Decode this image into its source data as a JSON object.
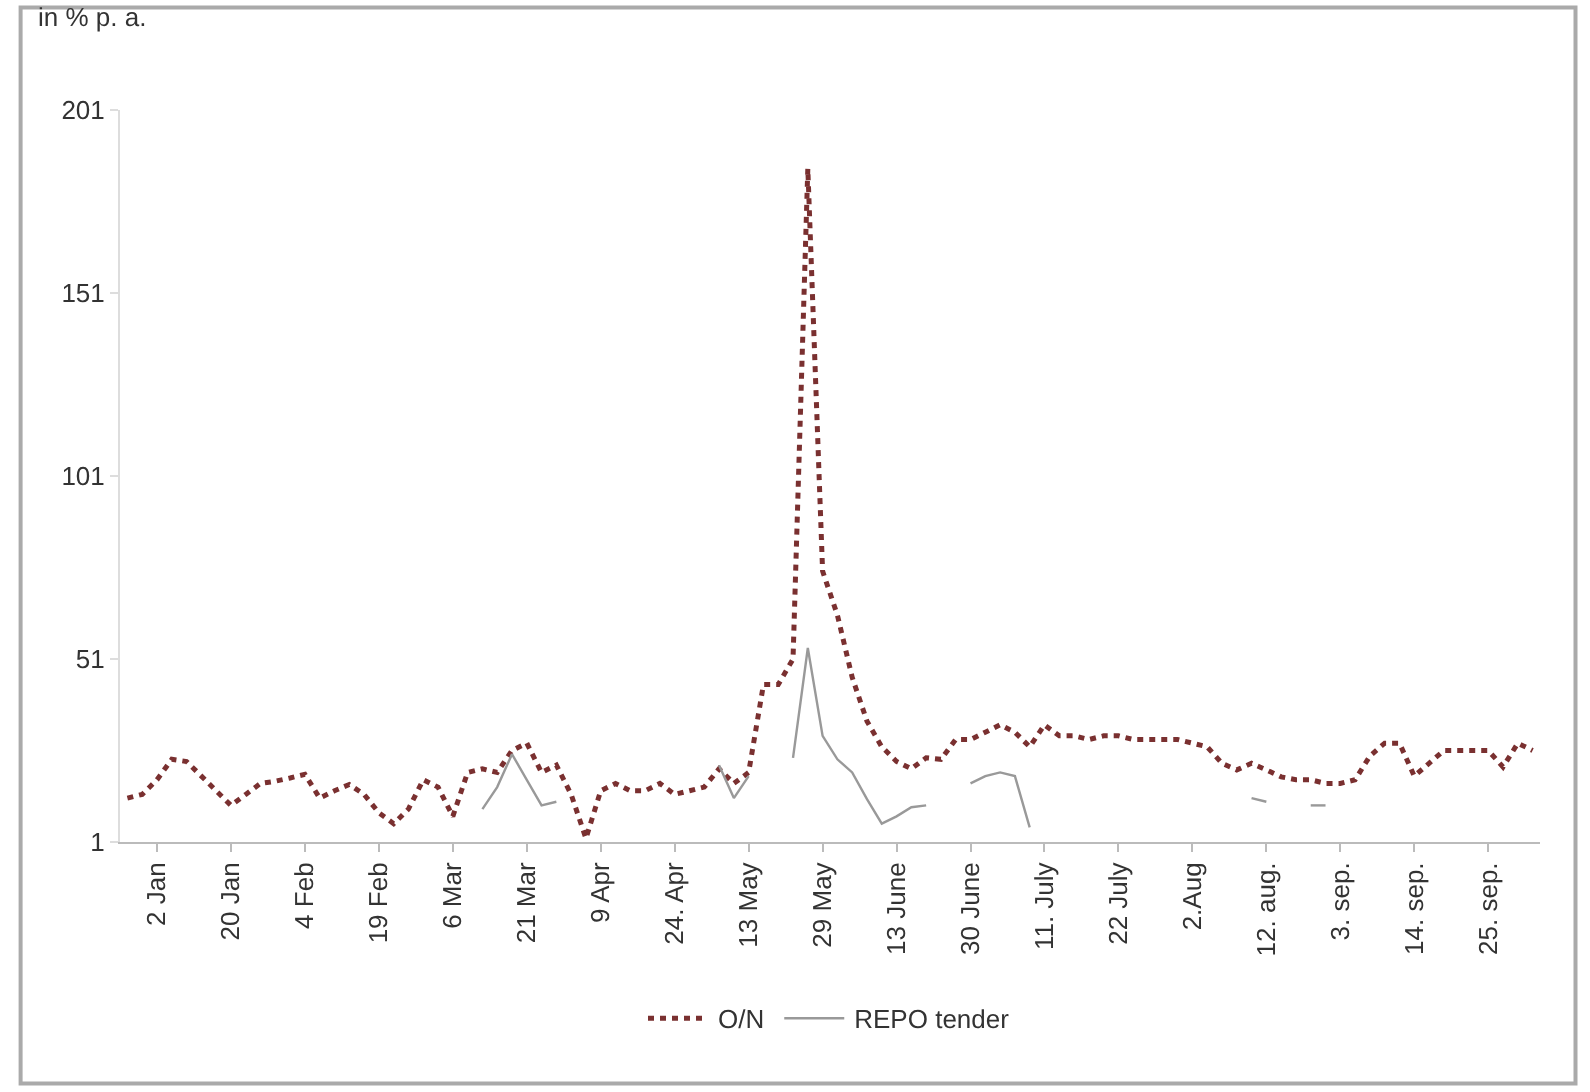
{
  "chart_data": {
    "type": "line",
    "ylabel": "in % p. a.",
    "categories": [
      null,
      null,
      "2 Jan",
      null,
      null,
      null,
      null,
      "20 Jan",
      null,
      null,
      null,
      null,
      "4 Feb",
      null,
      null,
      null,
      null,
      "19 Feb",
      null,
      null,
      null,
      null,
      "6 Mar",
      null,
      null,
      null,
      null,
      "21 Mar",
      null,
      null,
      null,
      null,
      "9 Apr",
      null,
      null,
      null,
      null,
      "24. Apr",
      null,
      null,
      null,
      null,
      "13 May",
      null,
      null,
      null,
      null,
      "29 May",
      null,
      null,
      null,
      null,
      "13 June",
      null,
      null,
      null,
      null,
      "30 June",
      null,
      null,
      null,
      null,
      "11. July",
      null,
      null,
      null,
      null,
      "22 July",
      null,
      null,
      null,
      null,
      "2.Aug",
      null,
      null,
      null,
      null,
      "12. aug.",
      null,
      null,
      null,
      null,
      "3. sep.",
      null,
      null,
      null,
      null,
      "14. sep.",
      null,
      null,
      null,
      null,
      "25. sep.",
      null,
      null,
      null
    ],
    "series": [
      {
        "name": "O/N",
        "color": "#7a3030",
        "line_style": "dotted",
        "values": [
          13,
          14,
          18,
          23.6,
          23,
          19,
          15,
          11,
          14,
          17,
          17.6,
          18.5,
          19.5,
          13,
          15,
          16.7,
          14,
          9,
          6,
          10,
          18,
          16,
          8,
          20,
          21,
          20,
          26,
          28,
          20,
          22,
          14,
          2,
          15,
          17,
          15,
          15,
          17,
          14,
          15,
          16,
          21,
          17,
          20,
          44,
          44,
          51,
          185,
          75,
          63,
          46,
          34,
          27,
          23,
          21,
          24,
          23.6,
          29,
          29,
          31,
          33,
          31,
          27,
          33,
          30,
          30,
          29,
          30,
          30,
          29,
          29,
          29,
          29,
          28,
          27,
          22.5,
          20.7,
          22.5,
          20.7,
          18.8,
          18,
          18,
          17,
          17,
          18,
          24.5,
          28,
          28,
          19,
          22.5,
          26,
          26,
          26,
          26,
          21.5,
          28,
          26
        ]
      },
      {
        "name": "REPO tender",
        "color": "#999999",
        "line_style": "solid",
        "values": [
          null,
          null,
          null,
          null,
          null,
          null,
          null,
          null,
          null,
          null,
          null,
          null,
          null,
          null,
          null,
          null,
          null,
          null,
          null,
          null,
          null,
          null,
          null,
          null,
          10,
          16,
          25,
          18,
          11,
          12,
          null,
          null,
          null,
          null,
          null,
          null,
          null,
          null,
          null,
          null,
          22,
          13,
          19,
          null,
          null,
          24,
          54,
          30,
          23.6,
          20,
          12.7,
          6,
          8,
          10.5,
          11,
          null,
          null,
          17,
          19,
          20,
          19,
          5,
          null,
          null,
          null,
          null,
          null,
          null,
          null,
          null,
          null,
          null,
          null,
          null,
          null,
          null,
          13,
          12,
          null,
          null,
          11,
          11,
          null,
          null,
          null,
          null,
          null,
          null,
          null,
          null,
          null,
          null,
          null,
          null,
          null,
          null
        ]
      }
    ],
    "ylim": [
      1,
      201
    ],
    "yticks": [
      1,
      51,
      101,
      151,
      201
    ],
    "legend": "bottom",
    "marker": "none",
    "grid": false
  }
}
